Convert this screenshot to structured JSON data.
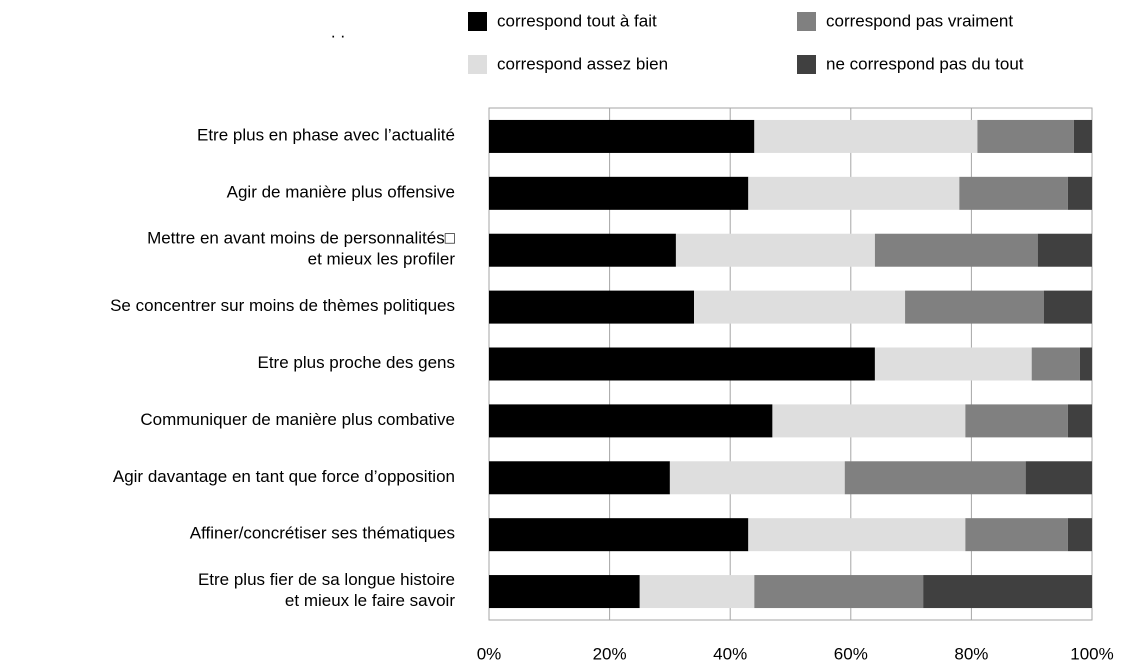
{
  "chart_data": {
    "type": "stacked-bar-horizontal",
    "title": ". .",
    "categories": [
      [
        "Etre plus en phase avec l’actualité"
      ],
      [
        "Agir de manière plus offensive"
      ],
      [
        "Mettre en avant moins de personnalités□",
        "et mieux les profiler"
      ],
      [
        "Se concentrer sur moins de thèmes politiques"
      ],
      [
        "Etre plus proche des gens"
      ],
      [
        "Communiquer de manière plus combative"
      ],
      [
        "Agir davantage en tant que force d’opposition"
      ],
      [
        "Affiner/concrétiser ses thématiques"
      ],
      [
        "Etre plus fier de sa longue histoire",
        "et mieux le faire savoir"
      ]
    ],
    "series": [
      {
        "name": "correspond tout à fait",
        "color": "#000000",
        "values": [
          44,
          43,
          31,
          34,
          64,
          47,
          30,
          43,
          25
        ]
      },
      {
        "name": "correspond assez bien",
        "color": "#dedede",
        "values": [
          37,
          35,
          33,
          35,
          26,
          32,
          29,
          36,
          19
        ]
      },
      {
        "name": "correspond pas vraiment",
        "color": "#808080",
        "values": [
          16,
          18,
          27,
          23,
          8,
          17,
          30,
          17,
          28
        ]
      },
      {
        "name": "ne correspond pas du tout",
        "color": "#404040",
        "values": [
          3,
          4,
          9,
          8,
          2,
          4,
          11,
          4,
          28
        ]
      }
    ],
    "xlim": [
      0,
      100
    ],
    "xticks": [
      {
        "value": 0,
        "label": "0%"
      },
      {
        "value": 20,
        "label": "20%"
      },
      {
        "value": 40,
        "label": "40%"
      },
      {
        "value": 60,
        "label": "60%"
      },
      {
        "value": 80,
        "label": "80%"
      },
      {
        "value": 100,
        "label": "100%"
      }
    ],
    "grid": true
  }
}
